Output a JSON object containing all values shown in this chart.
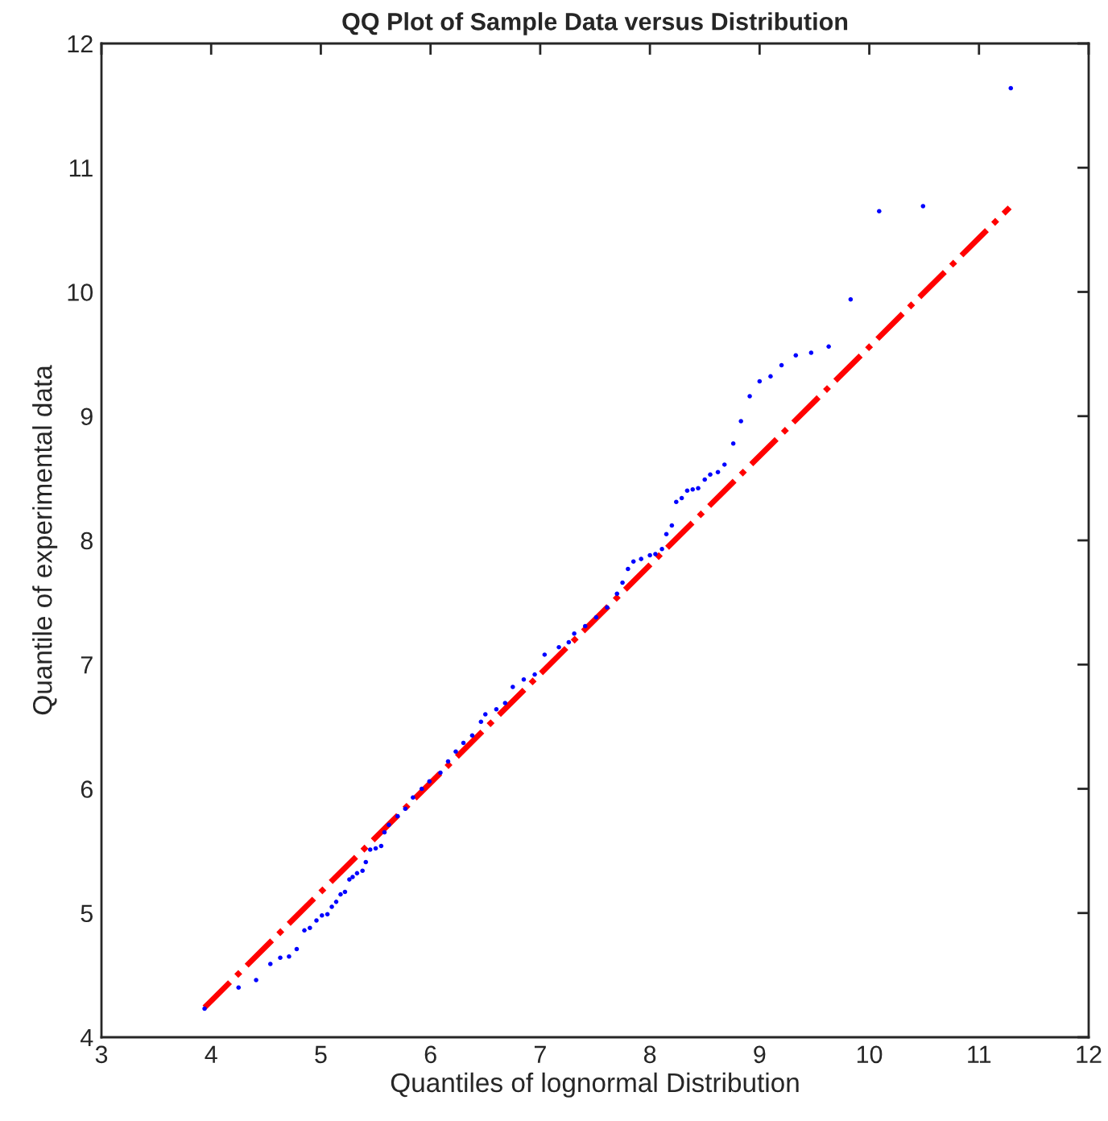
{
  "chart_data": {
    "type": "scatter",
    "title": "QQ Plot of Sample Data versus Distribution",
    "xlabel": "Quantiles of lognormal Distribution",
    "ylabel": "Quantile of experimental data",
    "xlim": [
      3,
      12
    ],
    "ylim": [
      4,
      12
    ],
    "xticks": [
      3,
      4,
      5,
      6,
      7,
      8,
      9,
      10,
      11,
      12
    ],
    "yticks": [
      4,
      5,
      6,
      7,
      8,
      9,
      10,
      11,
      12
    ],
    "grid": false,
    "series": [
      {
        "color": "#0000ff",
        "marker": "circle",
        "x": [
          3.94,
          4.25,
          4.41,
          4.54,
          4.63,
          4.71,
          4.78,
          4.85,
          4.9,
          4.96,
          5.01,
          5.06,
          5.1,
          5.14,
          5.18,
          5.22,
          5.26,
          5.29,
          5.33,
          5.38,
          5.41,
          5.45,
          5.5,
          5.55,
          5.58,
          5.62,
          5.7,
          5.77,
          5.84,
          5.92,
          5.99,
          6.09,
          6.16,
          6.23,
          6.3,
          6.38,
          6.46,
          6.5,
          6.6,
          6.68,
          6.75,
          6.85,
          6.95,
          7.04,
          7.17,
          7.26,
          7.31,
          7.41,
          7.51,
          7.61,
          7.7,
          7.75,
          7.8,
          7.85,
          7.92,
          8.0,
          8.05,
          8.11,
          8.15,
          8.2,
          8.24,
          8.29,
          8.34,
          8.39,
          8.44,
          8.5,
          8.55,
          8.62,
          8.68,
          8.76,
          8.83,
          8.91,
          9.0,
          9.1,
          9.2,
          9.33,
          9.47,
          9.63,
          9.83,
          10.09,
          10.49,
          11.29
        ],
        "values": [
          4.23,
          4.4,
          4.46,
          4.59,
          4.64,
          4.65,
          4.71,
          4.86,
          4.88,
          4.94,
          4.98,
          4.99,
          5.05,
          5.09,
          5.15,
          5.17,
          5.27,
          5.29,
          5.32,
          5.34,
          5.41,
          5.51,
          5.52,
          5.54,
          5.65,
          5.71,
          5.78,
          5.84,
          5.93,
          6.0,
          6.06,
          6.13,
          6.22,
          6.3,
          6.37,
          6.43,
          6.54,
          6.6,
          6.64,
          6.69,
          6.82,
          6.88,
          6.92,
          7.08,
          7.14,
          7.18,
          7.25,
          7.31,
          7.38,
          7.46,
          7.57,
          7.66,
          7.77,
          7.83,
          7.85,
          7.88,
          7.89,
          7.93,
          8.05,
          8.12,
          8.31,
          8.34,
          8.4,
          8.41,
          8.42,
          8.49,
          8.53,
          8.55,
          8.61,
          8.78,
          8.96,
          9.16,
          9.28,
          9.32,
          9.41,
          9.49,
          9.51,
          9.56,
          9.94,
          10.65,
          10.69,
          11.64
        ]
      },
      {
        "type": "line",
        "color": "#ff0000",
        "line_style": "dashdot",
        "x": [
          3.94,
          11.28
        ],
        "values": [
          4.24,
          10.68
        ]
      }
    ]
  }
}
